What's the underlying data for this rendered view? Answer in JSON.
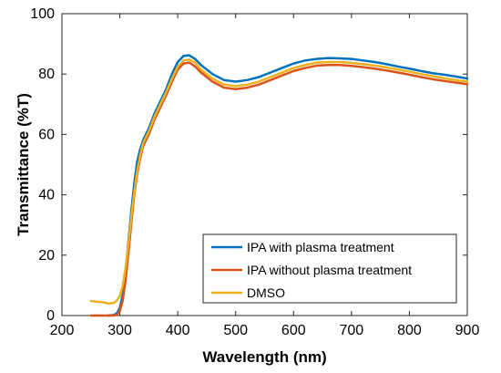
{
  "chart_data": {
    "type": "line",
    "title": "",
    "xlabel": "Wavelength (nm)",
    "ylabel": "Transmittance (%T)",
    "xlim": [
      200,
      900
    ],
    "ylim": [
      0,
      100
    ],
    "xticks": [
      "200",
      "300",
      "400",
      "500",
      "600",
      "700",
      "800",
      "900"
    ],
    "yticks": [
      "0",
      "20",
      "40",
      "60",
      "80",
      "100"
    ],
    "grid": false,
    "legend_position": "bottom-right",
    "series": [
      {
        "name": "IPA with plasma treatment",
        "color": "#0072BD",
        "x": [
          280,
          290,
          295,
          300,
          305,
          310,
          315,
          320,
          325,
          330,
          335,
          340,
          350,
          360,
          370,
          380,
          390,
          400,
          410,
          420,
          430,
          440,
          460,
          480,
          500,
          520,
          540,
          560,
          580,
          600,
          620,
          640,
          660,
          680,
          700,
          720,
          740,
          760,
          780,
          800,
          820,
          840,
          860,
          880,
          900
        ],
        "y": [
          0,
          0.2,
          0.8,
          2.5,
          7,
          15,
          25,
          35,
          44,
          51,
          55,
          58,
          62,
          67,
          71,
          75,
          80,
          84,
          86,
          86.2,
          85,
          83,
          80,
          78,
          77.5,
          78,
          79,
          80.5,
          82,
          83.5,
          84.5,
          85,
          85.3,
          85.2,
          85,
          84.5,
          84,
          83.3,
          82.5,
          81.8,
          81,
          80.3,
          79.8,
          79.2,
          78.5
        ]
      },
      {
        "name": "IPA without plasma treatment",
        "color": "#D95319",
        "x": [
          250,
          260,
          270,
          280,
          290,
          295,
          300,
          305,
          310,
          315,
          320,
          325,
          330,
          335,
          340,
          350,
          360,
          370,
          380,
          390,
          400,
          410,
          420,
          430,
          440,
          460,
          480,
          500,
          520,
          540,
          560,
          580,
          600,
          620,
          640,
          660,
          680,
          700,
          720,
          740,
          760,
          780,
          800,
          820,
          840,
          860,
          880,
          900
        ],
        "y": [
          0,
          0,
          0,
          0,
          0,
          0.3,
          1.5,
          5,
          12,
          21,
          31,
          40,
          47,
          52,
          56,
          60,
          65,
          69,
          73,
          77.5,
          81.5,
          83.5,
          83.8,
          82.5,
          80.5,
          77.5,
          75.5,
          75,
          75.5,
          76.5,
          78,
          79.5,
          81,
          82,
          82.8,
          83,
          83,
          82.7,
          82.3,
          81.8,
          81.2,
          80.5,
          79.8,
          79,
          78.3,
          77.7,
          77.2,
          76.6
        ]
      },
      {
        "name": "DMSO",
        "color": "#EDB120",
        "x": [
          250,
          260,
          270,
          280,
          290,
          295,
          300,
          305,
          310,
          315,
          320,
          325,
          330,
          335,
          340,
          350,
          360,
          370,
          380,
          390,
          400,
          410,
          420,
          430,
          440,
          460,
          480,
          500,
          520,
          540,
          560,
          580,
          600,
          620,
          640,
          660,
          680,
          700,
          720,
          740,
          760,
          780,
          800,
          820,
          840,
          860,
          880,
          900
        ],
        "y": [
          4.8,
          4.6,
          4.4,
          4,
          4.2,
          5,
          6.5,
          10,
          16,
          24,
          33,
          41,
          48,
          53,
          57,
          61,
          66,
          70,
          74,
          78.5,
          82.5,
          84.5,
          84.8,
          83.8,
          81.5,
          78.5,
          76.5,
          76,
          76.5,
          77.5,
          79,
          80.5,
          82,
          83,
          83.8,
          84,
          84,
          83.7,
          83.3,
          82.8,
          82.2,
          81.5,
          80.8,
          80,
          79.3,
          78.6,
          78,
          77.5
        ]
      }
    ]
  }
}
